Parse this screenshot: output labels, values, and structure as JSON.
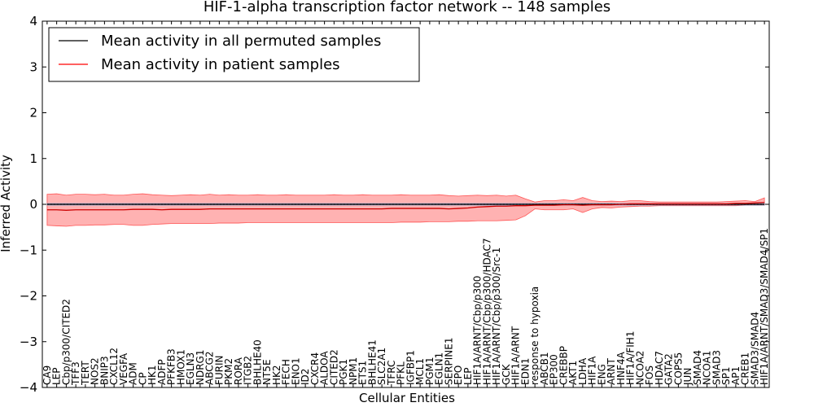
{
  "chart_data": {
    "type": "line",
    "title": "HIF-1-alpha transcription factor network -- 148 samples",
    "xlabel": "Cellular Entities",
    "ylabel": "Inferred Activity",
    "ylim": [
      -4,
      4
    ],
    "yticks": [
      -4,
      -3,
      -2,
      -1,
      0,
      1,
      2,
      3,
      4
    ],
    "legend_position": "top-left",
    "series": [
      {
        "name": "Mean activity in all permuted samples",
        "color": "#000000"
      },
      {
        "name": "Mean activity in patient samples",
        "color": "#ff0000"
      }
    ],
    "categories": [
      "CA9",
      "LEP",
      "Cbp/p300/CITED2",
      "TFF3",
      "TERT",
      "NOS2",
      "BNIP3",
      "CXCL12",
      "VEGFA",
      "ADM",
      "CP",
      "HK1",
      "ADFP",
      "PFKFB3",
      "HMOX1",
      "EGLN3",
      "NDRG1",
      "ABCG2",
      "FURIN",
      "PKM2",
      "RORA",
      "ITGB2",
      "BHLHE40",
      "NT5E",
      "HK2",
      "FECH",
      "ENO1",
      "ID2",
      "CXCR4",
      "ALDOA",
      "CITED2",
      "PGK1",
      "NPM1",
      "ETS1",
      "BHLHE41",
      "SLC2A1",
      "TFRC",
      "PFKL",
      "IGFBP1",
      "MCL1",
      "PGM1",
      "EGLN1",
      "SERPINE1",
      "EPO",
      "LEP",
      "HIF1A/ARNT/Cbp/p300",
      "HIF1A/ARNT/Cbp/p300/HDAC7",
      "HIF1A/ARNT/Cbp/p300/Src-1",
      "GCK",
      "HIF1A/ARNT",
      "EDN1",
      "response to hypoxia",
      "ABCB1",
      "EP300",
      "CREBBP",
      "AKT1",
      "LDHA",
      "HIF1A",
      "ENG",
      "ARNT",
      "HNF4A",
      "HIF1A/FIH1",
      "NCOA2",
      "FOS",
      "HDAC7",
      "GATA2",
      "COPS5",
      "JUN",
      "SMAD4",
      "NCOA1",
      "SMAD3",
      "SP1",
      "AP1",
      "CREB1",
      "SMAD3/SMAD4",
      "HIF1A/ARNT/SMAD3/SMAD4/SP1"
    ],
    "mean_permuted": [
      0.0,
      0.0,
      0.0,
      0.0,
      0.0,
      0.0,
      0.0,
      0.0,
      0.0,
      0.0,
      0.0,
      0.0,
      0.0,
      0.0,
      0.0,
      0.0,
      0.0,
      0.0,
      0.0,
      0.0,
      0.0,
      0.0,
      0.0,
      0.0,
      0.0,
      0.0,
      0.0,
      0.0,
      0.0,
      0.0,
      0.0,
      0.0,
      0.0,
      0.0,
      0.0,
      0.0,
      0.0,
      0.0,
      0.0,
      0.0,
      0.0,
      0.0,
      0.0,
      0.0,
      0.0,
      0.0,
      0.0,
      0.0,
      0.0,
      0.0,
      0.0,
      0.0,
      0.0,
      0.0,
      0.0,
      0.0,
      0.0,
      0.0,
      0.0,
      0.0,
      0.0,
      0.0,
      0.0,
      0.0,
      0.0,
      0.0,
      0.0,
      0.0,
      0.0,
      0.0,
      0.0,
      0.0,
      0.0,
      0.0,
      0.0,
      0.0
    ],
    "permuted_upper": [
      0.02,
      0.02,
      0.02,
      0.02,
      0.02,
      0.02,
      0.02,
      0.02,
      0.02,
      0.02,
      0.02,
      0.02,
      0.02,
      0.02,
      0.02,
      0.02,
      0.02,
      0.02,
      0.02,
      0.02,
      0.02,
      0.02,
      0.02,
      0.02,
      0.02,
      0.02,
      0.02,
      0.02,
      0.02,
      0.02,
      0.02,
      0.02,
      0.02,
      0.02,
      0.02,
      0.02,
      0.02,
      0.02,
      0.02,
      0.02,
      0.02,
      0.02,
      0.02,
      0.02,
      0.02,
      0.02,
      0.02,
      0.02,
      0.02,
      0.02,
      0.02,
      0.02,
      0.02,
      0.02,
      0.02,
      0.02,
      0.02,
      0.02,
      0.02,
      0.02,
      0.02,
      0.02,
      0.02,
      0.02,
      0.02,
      0.02,
      0.02,
      0.02,
      0.02,
      0.02,
      0.02,
      0.02,
      0.02,
      0.02,
      0.02,
      0.02
    ],
    "permuted_lower": [
      -0.02,
      -0.02,
      -0.02,
      -0.02,
      -0.02,
      -0.02,
      -0.02,
      -0.02,
      -0.02,
      -0.02,
      -0.02,
      -0.02,
      -0.02,
      -0.02,
      -0.02,
      -0.02,
      -0.02,
      -0.02,
      -0.02,
      -0.02,
      -0.02,
      -0.02,
      -0.02,
      -0.02,
      -0.02,
      -0.02,
      -0.02,
      -0.02,
      -0.02,
      -0.02,
      -0.02,
      -0.02,
      -0.02,
      -0.02,
      -0.02,
      -0.02,
      -0.02,
      -0.02,
      -0.02,
      -0.02,
      -0.02,
      -0.02,
      -0.02,
      -0.02,
      -0.02,
      -0.02,
      -0.02,
      -0.02,
      -0.02,
      -0.02,
      -0.02,
      -0.02,
      -0.02,
      -0.02,
      -0.02,
      -0.02,
      -0.02,
      -0.02,
      -0.02,
      -0.02,
      -0.02,
      -0.02,
      -0.02,
      -0.02,
      -0.02,
      -0.02,
      -0.02,
      -0.02,
      -0.02,
      -0.02,
      -0.02,
      -0.02,
      -0.02,
      -0.02,
      -0.02,
      -0.02
    ],
    "mean_patient": [
      -0.12,
      -0.12,
      -0.13,
      -0.12,
      -0.12,
      -0.12,
      -0.12,
      -0.12,
      -0.12,
      -0.11,
      -0.11,
      -0.11,
      -0.12,
      -0.11,
      -0.11,
      -0.11,
      -0.11,
      -0.1,
      -0.1,
      -0.1,
      -0.1,
      -0.1,
      -0.1,
      -0.1,
      -0.1,
      -0.1,
      -0.1,
      -0.1,
      -0.1,
      -0.1,
      -0.1,
      -0.1,
      -0.1,
      -0.1,
      -0.1,
      -0.1,
      -0.09,
      -0.09,
      -0.09,
      -0.09,
      -0.09,
      -0.09,
      -0.1,
      -0.09,
      -0.08,
      -0.06,
      -0.05,
      -0.04,
      -0.04,
      -0.03,
      -0.03,
      -0.02,
      -0.02,
      -0.02,
      -0.01,
      -0.01,
      -0.02,
      -0.01,
      -0.01,
      -0.01,
      0.0,
      0.01,
      0.01,
      0.01,
      0.01,
      0.01,
      0.01,
      0.01,
      0.01,
      0.01,
      0.01,
      0.01,
      0.02,
      0.02,
      0.03,
      0.04
    ],
    "patient_upper": [
      0.22,
      0.23,
      0.2,
      0.22,
      0.22,
      0.21,
      0.22,
      0.2,
      0.2,
      0.22,
      0.23,
      0.21,
      0.2,
      0.19,
      0.2,
      0.21,
      0.2,
      0.22,
      0.2,
      0.21,
      0.2,
      0.2,
      0.21,
      0.2,
      0.2,
      0.21,
      0.2,
      0.2,
      0.2,
      0.2,
      0.21,
      0.2,
      0.2,
      0.21,
      0.2,
      0.2,
      0.2,
      0.21,
      0.2,
      0.2,
      0.2,
      0.21,
      0.19,
      0.18,
      0.19,
      0.2,
      0.19,
      0.2,
      0.18,
      0.2,
      0.12,
      0.05,
      0.08,
      0.08,
      0.1,
      0.08,
      0.15,
      0.08,
      0.06,
      0.07,
      0.06,
      0.08,
      0.08,
      0.06,
      0.05,
      0.05,
      0.05,
      0.05,
      0.05,
      0.05,
      0.05,
      0.06,
      0.07,
      0.08,
      0.06,
      0.14
    ],
    "patient_lower": [
      -0.46,
      -0.47,
      -0.48,
      -0.46,
      -0.46,
      -0.45,
      -0.45,
      -0.44,
      -0.44,
      -0.46,
      -0.46,
      -0.44,
      -0.43,
      -0.42,
      -0.42,
      -0.42,
      -0.42,
      -0.42,
      -0.41,
      -0.41,
      -0.41,
      -0.4,
      -0.4,
      -0.4,
      -0.4,
      -0.4,
      -0.4,
      -0.4,
      -0.4,
      -0.4,
      -0.4,
      -0.4,
      -0.4,
      -0.4,
      -0.4,
      -0.4,
      -0.4,
      -0.39,
      -0.39,
      -0.39,
      -0.38,
      -0.38,
      -0.38,
      -0.37,
      -0.37,
      -0.36,
      -0.36,
      -0.36,
      -0.35,
      -0.34,
      -0.25,
      -0.1,
      -0.12,
      -0.12,
      -0.12,
      -0.1,
      -0.18,
      -0.1,
      -0.07,
      -0.08,
      -0.06,
      -0.05,
      -0.04,
      -0.04,
      -0.03,
      -0.03,
      -0.03,
      -0.03,
      -0.03,
      -0.03,
      -0.03,
      -0.03,
      -0.03,
      -0.02,
      -0.02,
      -0.02
    ]
  }
}
